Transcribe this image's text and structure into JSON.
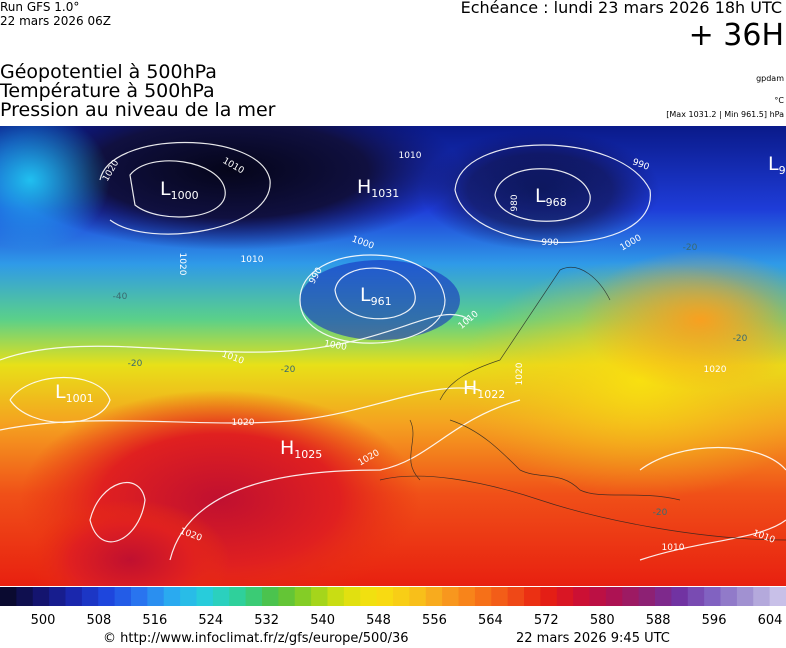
{
  "header": {
    "run": "Run GFS 1.0°",
    "run_date": "22 mars 2026 06Z",
    "echeance": "Echéance : lundi 23 mars 2026 18h UTC",
    "lead": "+ 36H",
    "titles": [
      "Géopotentiel à 500hPa",
      "Température à 500hPa",
      "Pression au niveau de la mer"
    ],
    "notes": [
      "gpdam",
      "°C",
      "[Max 1031.2 | Min 961.5] hPa"
    ]
  },
  "map": {
    "centers": [
      {
        "type": "L",
        "value": "1000"
      },
      {
        "type": "H",
        "value": "1031"
      },
      {
        "type": "L",
        "value": "968"
      },
      {
        "type": "L",
        "value": "9"
      },
      {
        "type": "L",
        "value": "961"
      },
      {
        "type": "L",
        "value": "1001"
      },
      {
        "type": "H",
        "value": "1022"
      },
      {
        "type": "H",
        "value": "1025"
      }
    ],
    "isobar_labels": [
      "1020",
      "1010",
      "1010",
      "990",
      "1000",
      "990",
      "1000",
      "1010",
      "990",
      "1000",
      "1010",
      "1020",
      "980",
      "1020",
      "1020",
      "1020",
      "1020",
      "1020",
      "1010",
      "1010",
      "1010"
    ],
    "temperature_labels": [
      "-40",
      "-20",
      "-20",
      "-20",
      "-20",
      "-20"
    ]
  },
  "colorbar": {
    "ticks": [
      500,
      508,
      516,
      524,
      532,
      540,
      548,
      556,
      564,
      572,
      580,
      588,
      596,
      604
    ]
  },
  "footer": {
    "url": "© http://www.infoclimat.fr/z/gfs/europe/500/36",
    "timestamp": "22 mars 2026  9:45 UTC"
  }
}
